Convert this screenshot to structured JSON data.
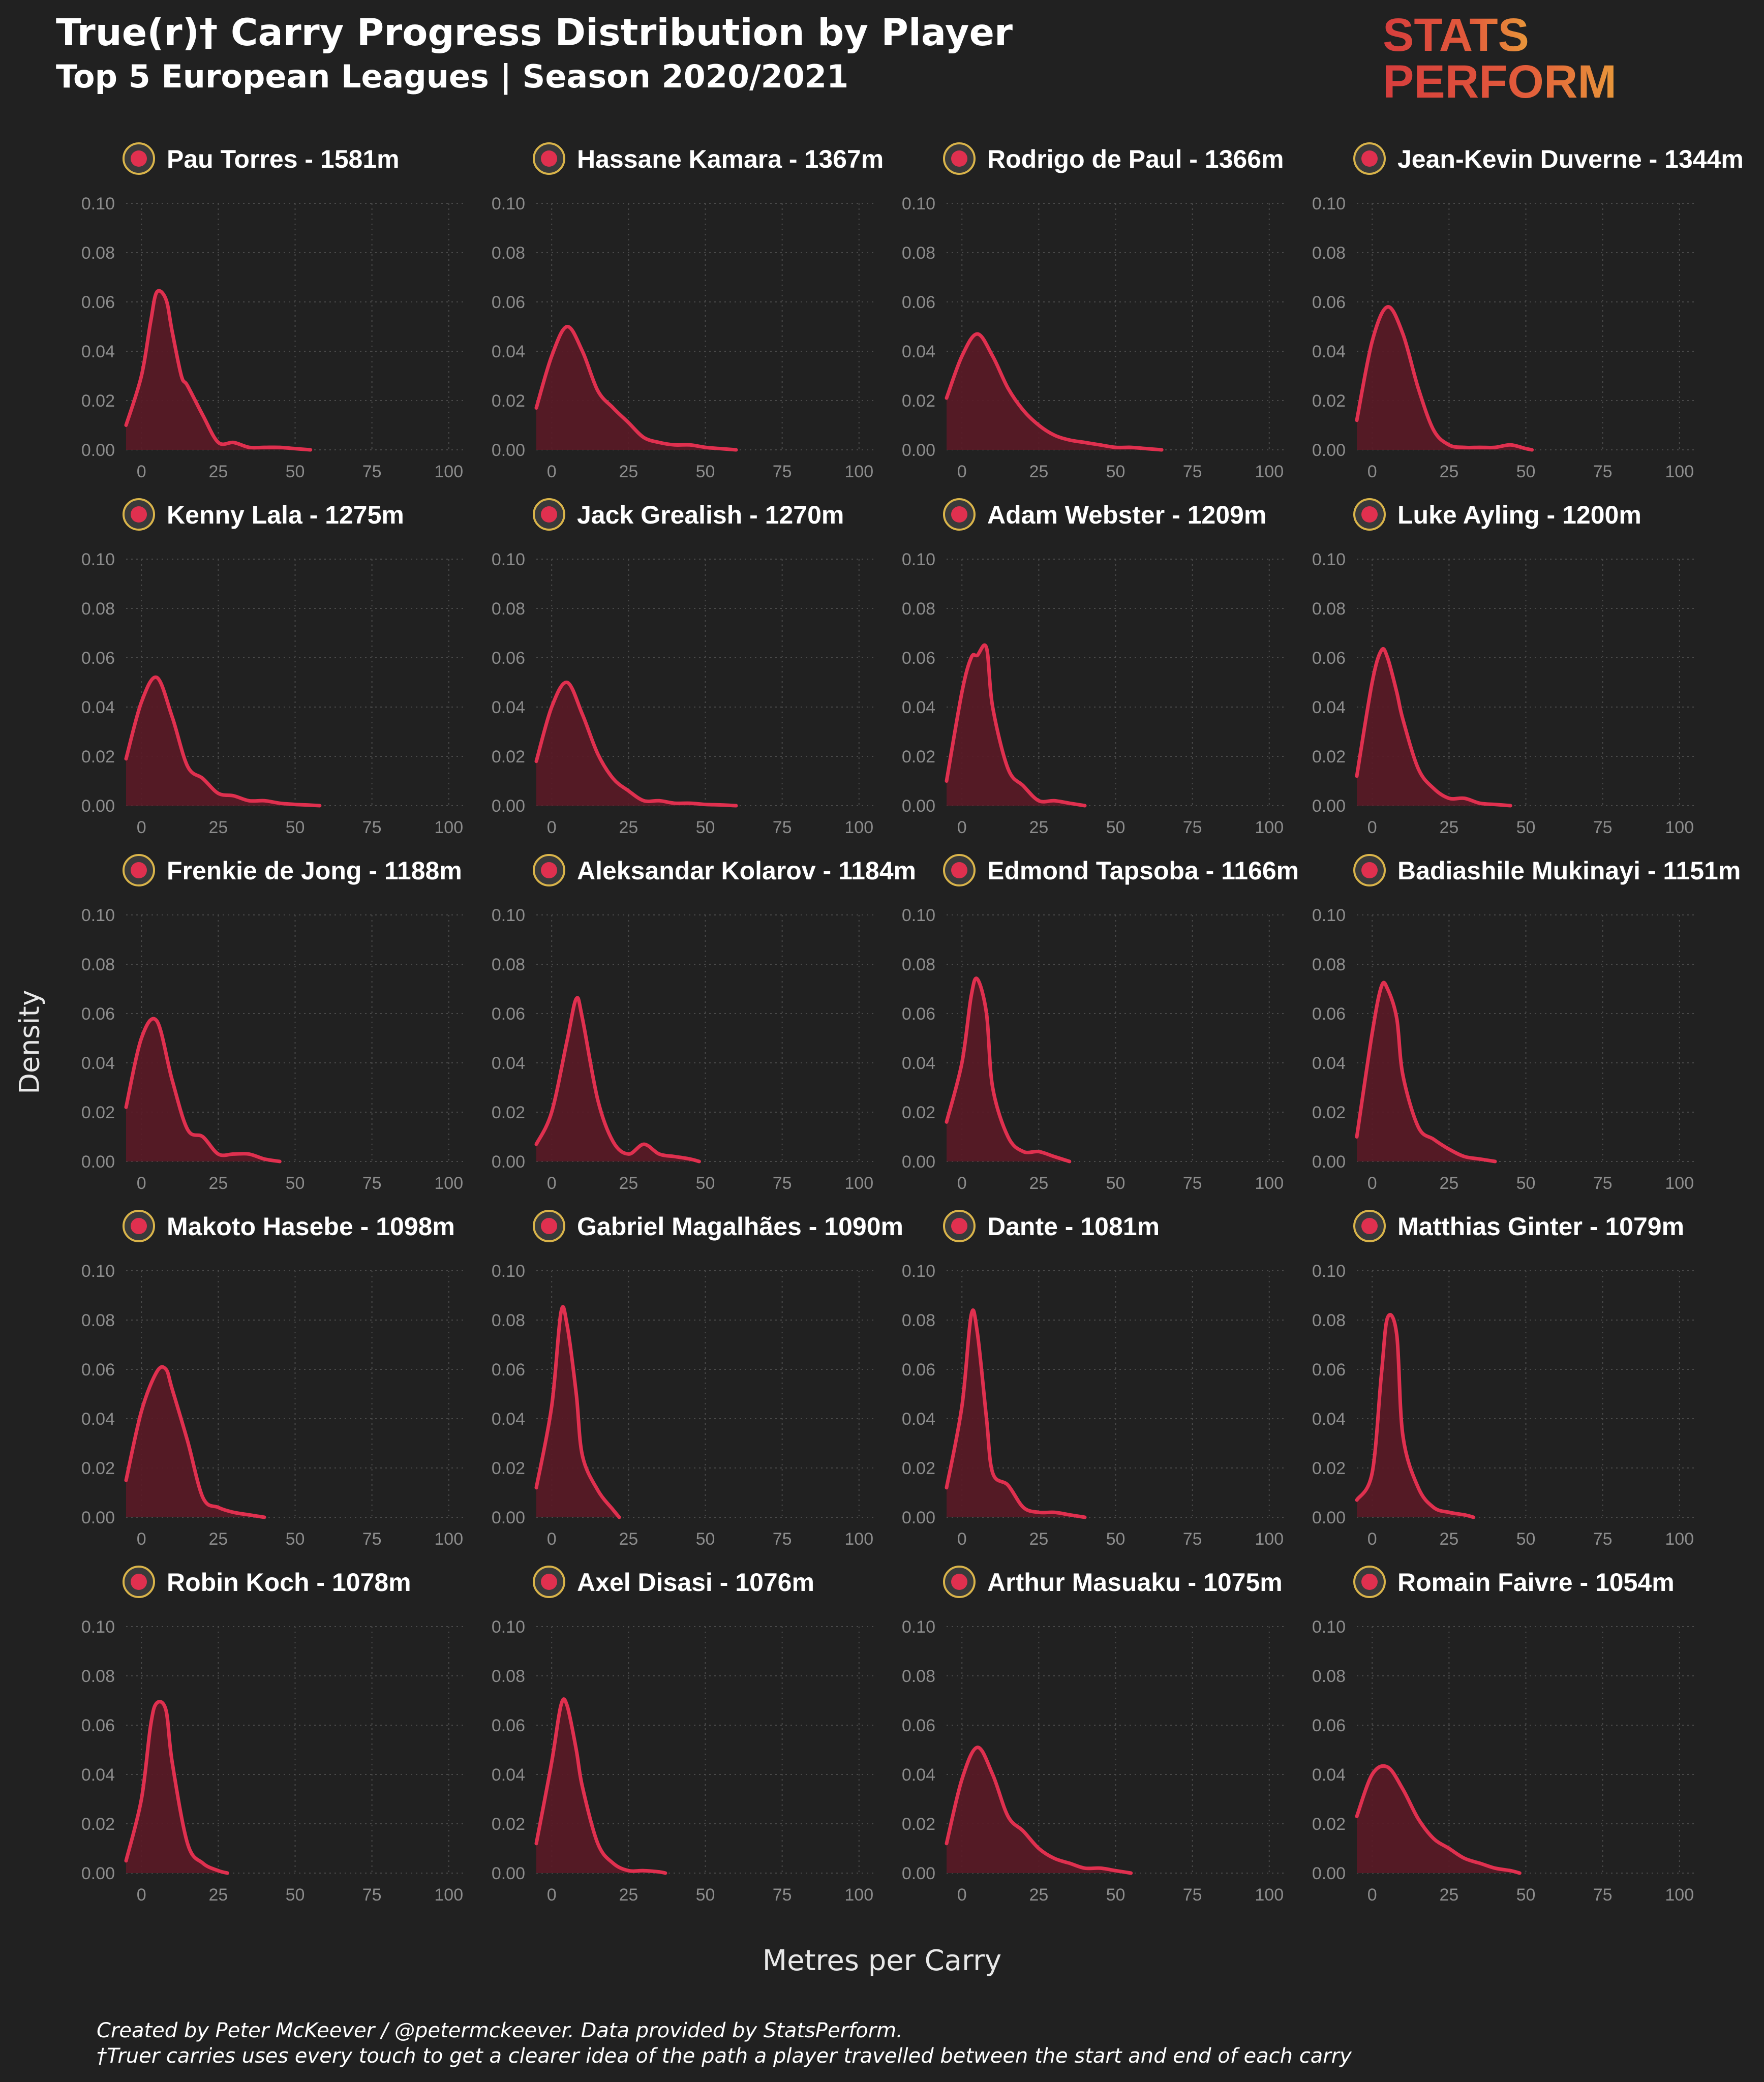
{
  "title": "True(r)† Carry Progress Distribution by Player",
  "subtitle": "Top 5 European Leagues | Season 2020/2021",
  "logo": {
    "line1": "STATS",
    "line2": "PERFORM",
    "colors": [
      "#d63d3d",
      "#e8713a",
      "#e89a3a"
    ]
  },
  "colors": {
    "background": "#212121",
    "line": "#e0304f",
    "fill": "#5a1a26",
    "grid": "#4a4a4a",
    "tick": "#8c8c8c"
  },
  "footer": {
    "line1": "Created by Peter McKeever / @petermckeever. Data provided by StatsPerform.",
    "line2": "†Truer carries uses every touch to get a clearer idea of the path a player travelled between the start and end of each carry"
  },
  "chart_data": {
    "type": "area",
    "xlabel": "Metres per Carry",
    "ylabel": "Density",
    "xlim": [
      -5,
      105
    ],
    "ylim": [
      0,
      0.1
    ],
    "xticks": [
      "0",
      "25",
      "50",
      "75",
      "100"
    ],
    "xtick_values": [
      0,
      25,
      50,
      75,
      100
    ],
    "yticks": [
      "0.00",
      "0.02",
      "0.04",
      "0.06",
      "0.08",
      "0.10"
    ],
    "ytick_values": [
      0,
      0.02,
      0.04,
      0.06,
      0.08,
      0.1
    ],
    "grid": true,
    "panels": [
      {
        "player": "Pau Torres - 1581m",
        "crest": "yellow-crest",
        "x": [
          -5,
          0,
          3,
          5,
          8,
          10,
          13,
          15,
          20,
          25,
          30,
          35,
          40,
          45,
          50,
          55
        ],
        "y": [
          0.01,
          0.03,
          0.052,
          0.064,
          0.061,
          0.048,
          0.03,
          0.026,
          0.014,
          0.003,
          0.003,
          0.001,
          0.001,
          0.001,
          0.0005,
          0
        ]
      },
      {
        "player": "Hassane Kamara - 1367m",
        "crest": "nice-crest",
        "x": [
          -5,
          0,
          5,
          10,
          15,
          20,
          25,
          30,
          35,
          40,
          45,
          50,
          55,
          60
        ],
        "y": [
          0.017,
          0.038,
          0.05,
          0.04,
          0.024,
          0.017,
          0.011,
          0.005,
          0.003,
          0.002,
          0.002,
          0.001,
          0.0005,
          0
        ]
      },
      {
        "player": "Rodrigo de Paul - 1366m",
        "crest": "udinese-crest",
        "x": [
          -5,
          0,
          5,
          10,
          15,
          20,
          25,
          30,
          35,
          40,
          45,
          50,
          55,
          60,
          65
        ],
        "y": [
          0.021,
          0.038,
          0.047,
          0.038,
          0.025,
          0.016,
          0.01,
          0.006,
          0.004,
          0.003,
          0.002,
          0.001,
          0.001,
          0.0005,
          0
        ]
      },
      {
        "player": "Jean-Kevin Duverne - 1344m",
        "crest": "brest-crest",
        "x": [
          -5,
          0,
          5,
          10,
          15,
          20,
          25,
          30,
          35,
          40,
          45,
          50,
          52
        ],
        "y": [
          0.012,
          0.044,
          0.058,
          0.047,
          0.025,
          0.008,
          0.002,
          0.001,
          0.001,
          0.001,
          0.002,
          0.0005,
          0
        ]
      },
      {
        "player": "Kenny Lala - 1275m",
        "crest": "strasbourg-crest",
        "x": [
          -5,
          0,
          5,
          10,
          15,
          20,
          25,
          30,
          35,
          40,
          45,
          50,
          55,
          58
        ],
        "y": [
          0.019,
          0.042,
          0.052,
          0.036,
          0.016,
          0.011,
          0.005,
          0.004,
          0.002,
          0.002,
          0.001,
          0.0005,
          0.0002,
          0
        ]
      },
      {
        "player": "Jack Grealish - 1270m",
        "crest": "villa-crest",
        "x": [
          -5,
          0,
          5,
          10,
          15,
          20,
          25,
          30,
          35,
          40,
          45,
          50,
          55,
          60
        ],
        "y": [
          0.018,
          0.04,
          0.05,
          0.037,
          0.021,
          0.011,
          0.006,
          0.002,
          0.002,
          0.001,
          0.001,
          0.0005,
          0.0003,
          0
        ]
      },
      {
        "player": "Adam Webster - 1209m",
        "crest": "brighton-crest",
        "x": [
          -5,
          0,
          3,
          5,
          8,
          10,
          15,
          20,
          25,
          30,
          35,
          40
        ],
        "y": [
          0.01,
          0.046,
          0.06,
          0.061,
          0.064,
          0.04,
          0.015,
          0.008,
          0.002,
          0.002,
          0.001,
          0
        ]
      },
      {
        "player": "Luke Ayling - 1200m",
        "crest": "leeds-crest",
        "x": [
          -5,
          0,
          3,
          5,
          8,
          10,
          15,
          20,
          25,
          30,
          35,
          40,
          45
        ],
        "y": [
          0.012,
          0.05,
          0.063,
          0.06,
          0.046,
          0.035,
          0.015,
          0.007,
          0.003,
          0.003,
          0.001,
          0.0005,
          0
        ]
      },
      {
        "player": "Frenkie de Jong - 1188m",
        "crest": "barcelona-crest",
        "x": [
          -5,
          0,
          5,
          10,
          15,
          20,
          25,
          30,
          35,
          40,
          45
        ],
        "y": [
          0.022,
          0.05,
          0.057,
          0.033,
          0.013,
          0.01,
          0.003,
          0.003,
          0.003,
          0.001,
          0
        ]
      },
      {
        "player": "Aleksandar Kolarov - 1184m",
        "crest": "inter-crest",
        "x": [
          -5,
          0,
          5,
          8,
          10,
          15,
          20,
          25,
          30,
          35,
          40,
          45,
          48
        ],
        "y": [
          0.007,
          0.02,
          0.049,
          0.066,
          0.058,
          0.025,
          0.008,
          0.003,
          0.007,
          0.003,
          0.002,
          0.001,
          0
        ]
      },
      {
        "player": "Edmond Tapsoba - 1166m",
        "crest": "leverkusen-crest",
        "x": [
          -5,
          0,
          3,
          5,
          8,
          10,
          15,
          20,
          25,
          30,
          35
        ],
        "y": [
          0.016,
          0.04,
          0.067,
          0.074,
          0.06,
          0.03,
          0.01,
          0.004,
          0.004,
          0.002,
          0
        ]
      },
      {
        "player": "Badiashile Mukinayi - 1151m",
        "crest": "monaco-crest",
        "x": [
          -5,
          0,
          3,
          5,
          8,
          10,
          15,
          20,
          25,
          30,
          35,
          40
        ],
        "y": [
          0.01,
          0.052,
          0.071,
          0.07,
          0.058,
          0.035,
          0.014,
          0.009,
          0.005,
          0.002,
          0.001,
          0
        ]
      },
      {
        "player": "Makoto Hasebe - 1098m",
        "crest": "frankfurt-crest",
        "x": [
          -5,
          0,
          5,
          8,
          10,
          15,
          20,
          25,
          30,
          35,
          40
        ],
        "y": [
          0.015,
          0.043,
          0.059,
          0.06,
          0.052,
          0.031,
          0.008,
          0.004,
          0.002,
          0.001,
          0
        ]
      },
      {
        "player": "Gabriel Magalhães - 1090m",
        "crest": "arsenal-crest",
        "x": [
          -5,
          0,
          3,
          5,
          8,
          10,
          15,
          20,
          22
        ],
        "y": [
          0.012,
          0.045,
          0.083,
          0.078,
          0.05,
          0.025,
          0.011,
          0.003,
          0
        ]
      },
      {
        "player": "Dante - 1081m",
        "crest": "nice-crest",
        "x": [
          -5,
          0,
          3,
          5,
          8,
          10,
          15,
          20,
          25,
          30,
          35,
          40
        ],
        "y": [
          0.012,
          0.045,
          0.082,
          0.075,
          0.04,
          0.018,
          0.013,
          0.004,
          0.002,
          0.002,
          0.001,
          0
        ]
      },
      {
        "player": "Matthias Ginter - 1079m",
        "crest": "gladbach-crest",
        "x": [
          -5,
          0,
          3,
          5,
          8,
          10,
          15,
          20,
          25,
          30,
          33
        ],
        "y": [
          0.007,
          0.018,
          0.058,
          0.081,
          0.074,
          0.033,
          0.012,
          0.004,
          0.002,
          0.001,
          0
        ]
      },
      {
        "player": "Robin Koch - 1078m",
        "crest": "leeds-crest",
        "x": [
          -5,
          0,
          3,
          5,
          8,
          10,
          15,
          20,
          25,
          28
        ],
        "y": [
          0.005,
          0.03,
          0.06,
          0.069,
          0.066,
          0.045,
          0.012,
          0.004,
          0.001,
          0
        ]
      },
      {
        "player": "Axel Disasi - 1076m",
        "crest": "monaco-crest",
        "x": [
          -5,
          0,
          3,
          5,
          8,
          10,
          15,
          20,
          25,
          30,
          35,
          37
        ],
        "y": [
          0.012,
          0.045,
          0.068,
          0.068,
          0.05,
          0.035,
          0.012,
          0.004,
          0.001,
          0.001,
          0.0005,
          0
        ]
      },
      {
        "player": "Arthur Masuaku - 1075m",
        "crest": "westham-crest",
        "x": [
          -5,
          0,
          5,
          10,
          15,
          20,
          25,
          30,
          35,
          40,
          45,
          50,
          55
        ],
        "y": [
          0.012,
          0.038,
          0.051,
          0.04,
          0.023,
          0.017,
          0.01,
          0.006,
          0.004,
          0.002,
          0.002,
          0.001,
          0
        ]
      },
      {
        "player": "Romain Faivre - 1054m",
        "crest": "brest-crest",
        "x": [
          -5,
          0,
          5,
          10,
          15,
          20,
          25,
          30,
          35,
          40,
          45,
          48
        ],
        "y": [
          0.023,
          0.04,
          0.043,
          0.034,
          0.022,
          0.014,
          0.01,
          0.006,
          0.004,
          0.002,
          0.001,
          0
        ]
      }
    ]
  }
}
